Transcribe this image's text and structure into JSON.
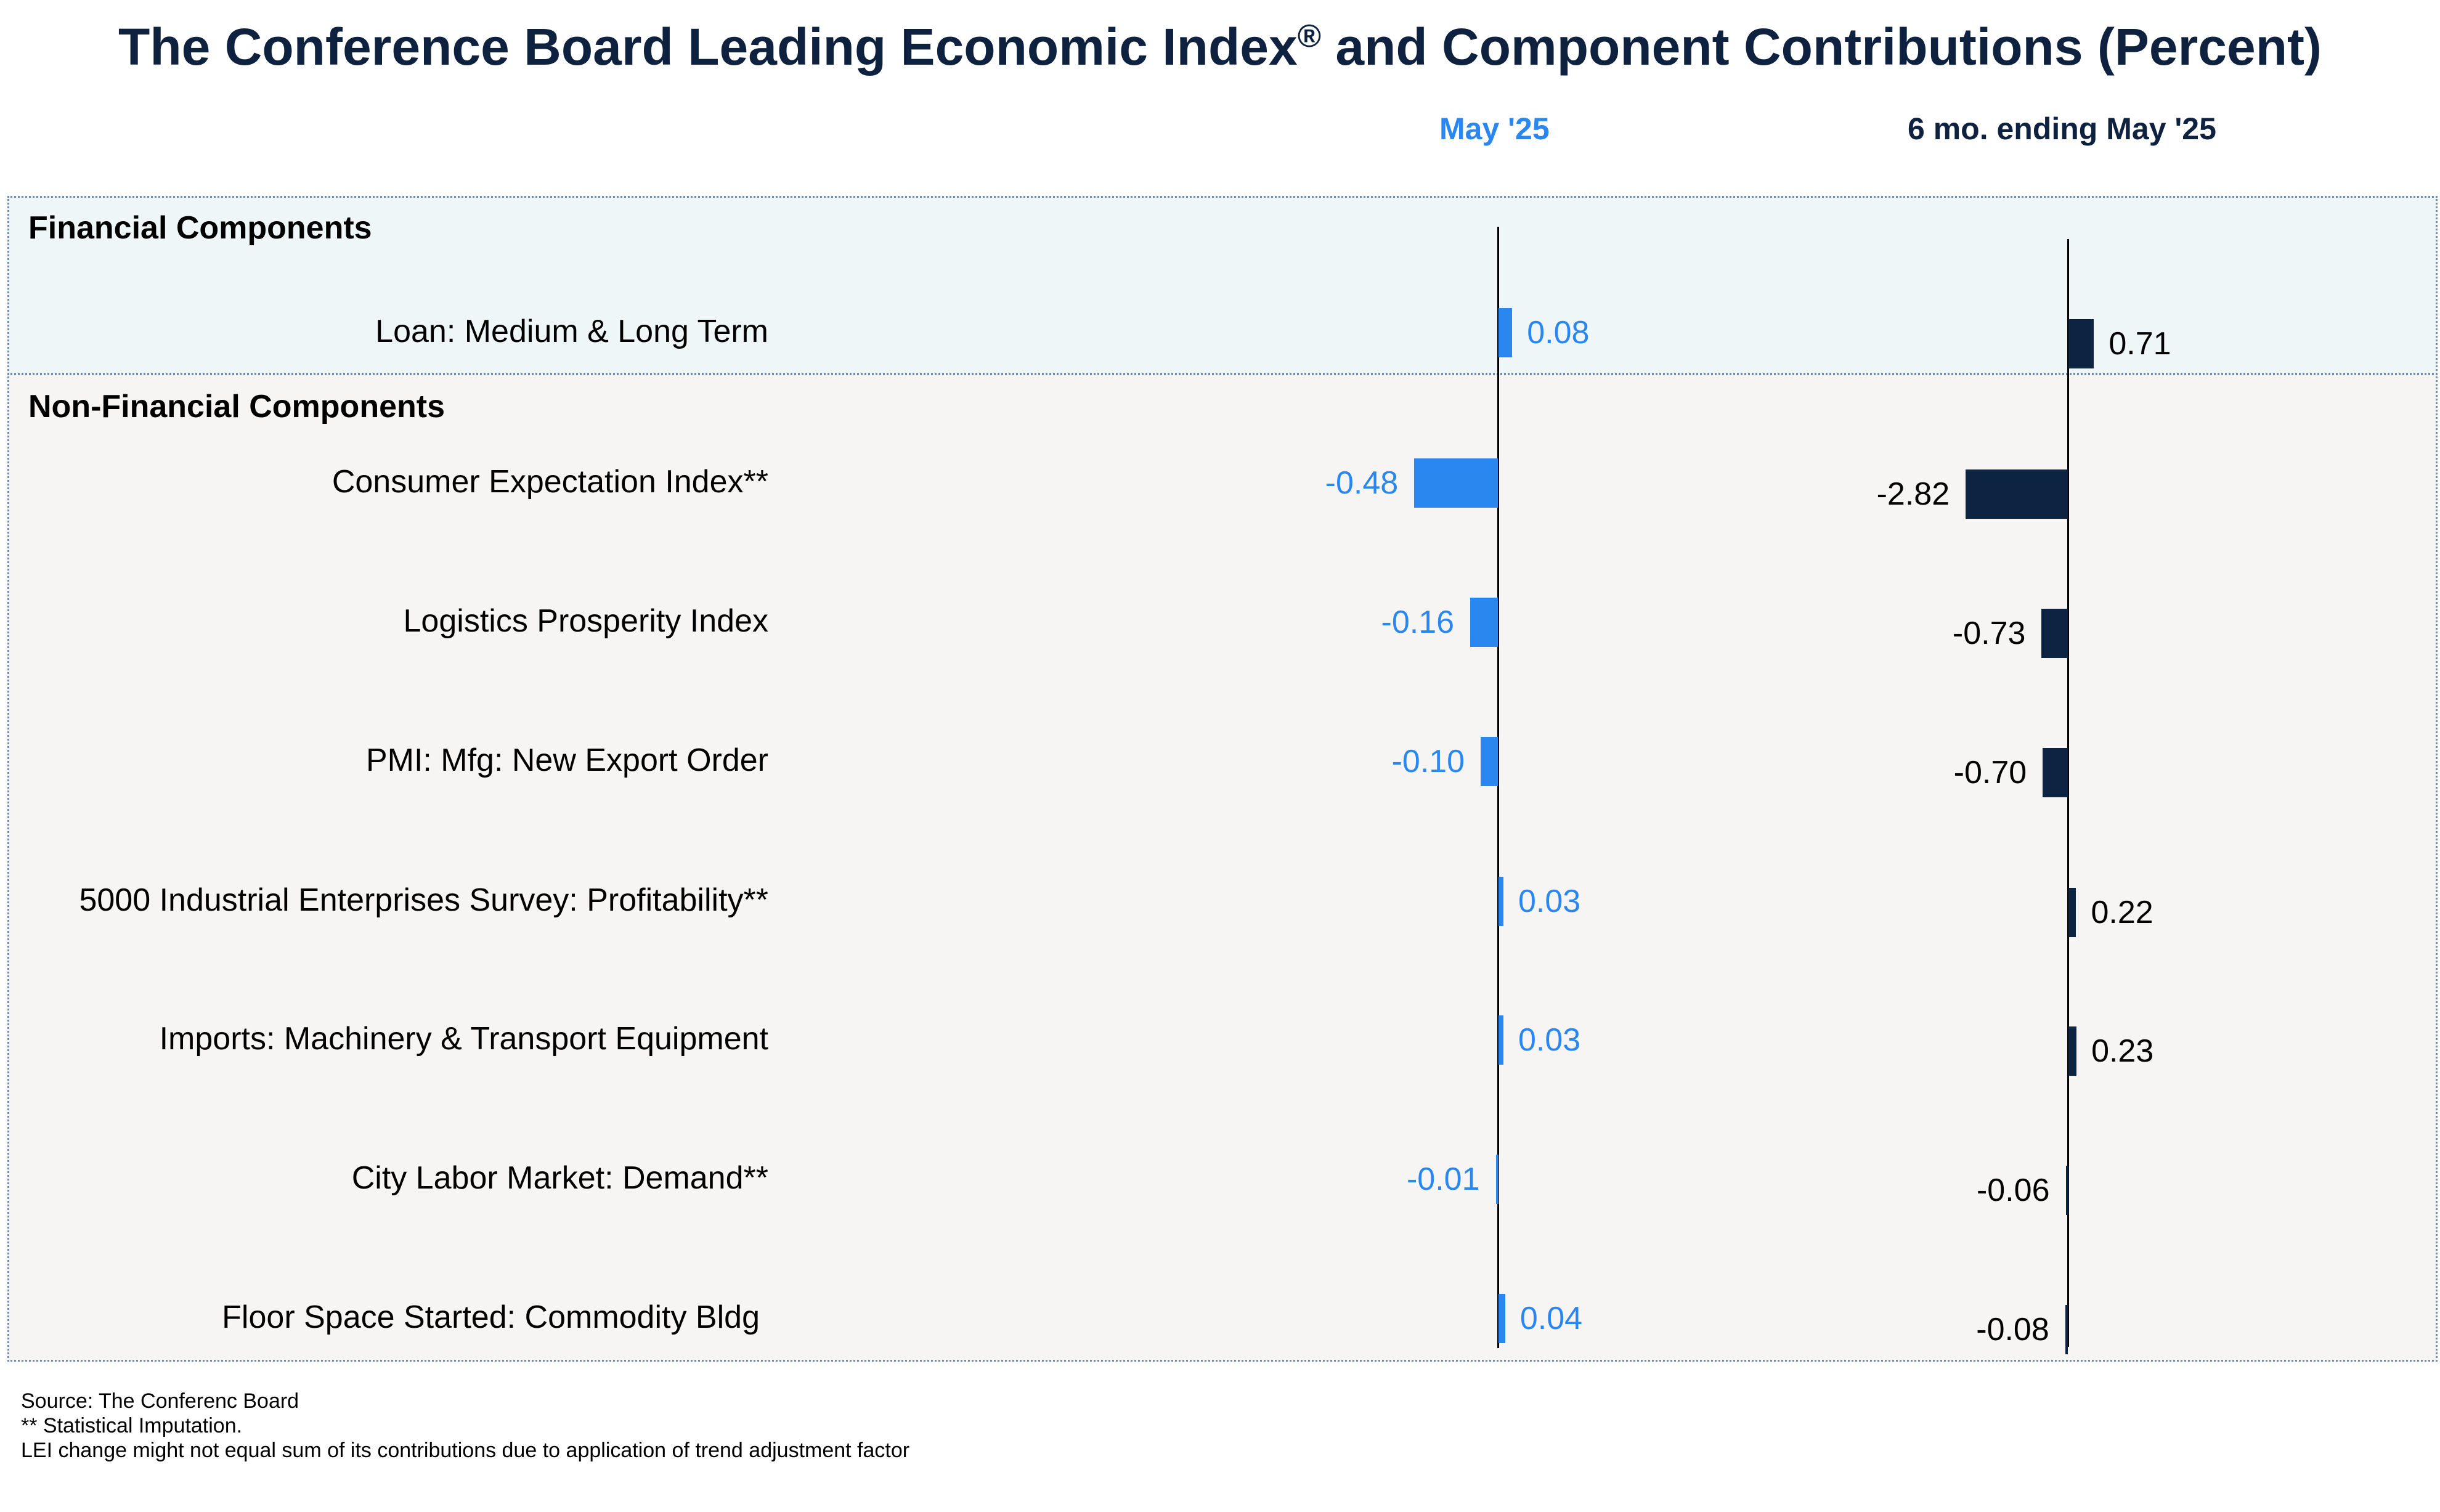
{
  "chart_data": {
    "type": "bar",
    "title": "The Conference Board Leading Economic Index",
    "title_mark": "®",
    "title_suffix": " and Component Contributions (Percent)",
    "series": [
      {
        "name": "May '25",
        "color": "#2a87f0"
      },
      {
        "name": "6 mo. ending May '25",
        "color": "#0c2442"
      }
    ],
    "sections": [
      {
        "label": "Financial Components",
        "rows": [
          {
            "label": "Loan: Medium & Long Term",
            "may": 0.08,
            "may_label": "0.08",
            "six": 0.71,
            "six_label": "0.71"
          }
        ]
      },
      {
        "label": "Non-Financial Components",
        "rows": [
          {
            "label": "Consumer Expectation Index**",
            "may": -0.48,
            "may_label": "-0.48",
            "six": -2.82,
            "six_label": "-2.82"
          },
          {
            "label": "Logistics Prosperity Index",
            "may": -0.16,
            "may_label": "-0.16",
            "six": -0.73,
            "six_label": "-0.73"
          },
          {
            "label": "PMI: Mfg: New Export Order",
            "may": -0.1,
            "may_label": "-0.10",
            "six": -0.7,
            "six_label": "-0.70"
          },
          {
            "label": "5000 Industrial Enterprises Survey: Profitability**",
            "may": 0.03,
            "may_label": "0.03",
            "six": 0.22,
            "six_label": "0.22"
          },
          {
            "label": "Imports: Machinery & Transport Equipment",
            "may": 0.03,
            "may_label": "0.03",
            "six": 0.23,
            "six_label": "0.23"
          },
          {
            "label": "City Labor Market: Demand**",
            "may": -0.01,
            "may_label": "-0.01",
            "six": -0.06,
            "six_label": "-0.06"
          },
          {
            "label": "Floor Space Started: Commodity Bldg",
            "may": 0.04,
            "may_label": "0.04",
            "six": -0.08,
            "six_label": "-0.08"
          }
        ]
      }
    ],
    "footnotes": [
      "Source: The Conferenc Board",
      "**  Statistical Imputation.",
      "LEI change might not equal sum of its contributions due to application of trend adjustment factor"
    ],
    "grid": false,
    "legend": "none"
  }
}
